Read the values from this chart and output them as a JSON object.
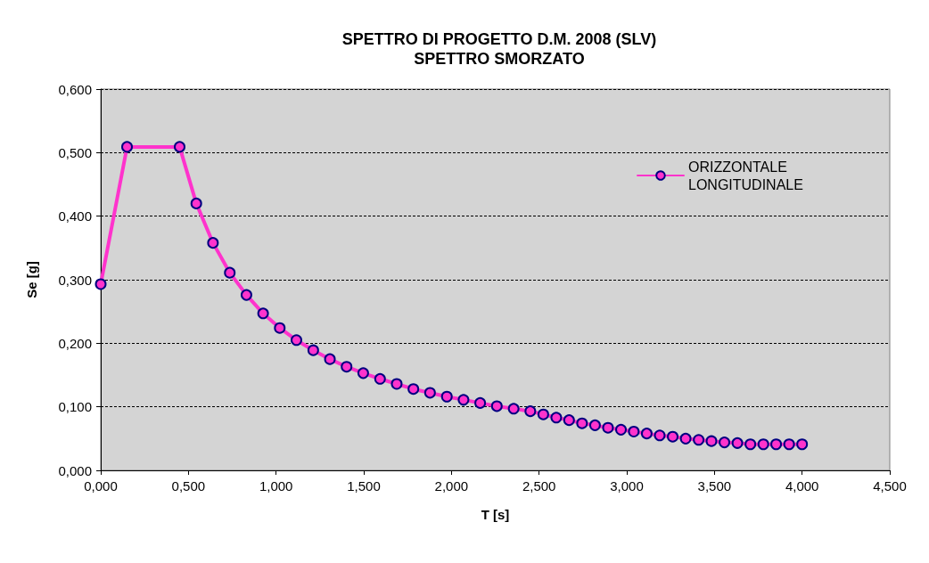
{
  "chart_data": {
    "type": "line",
    "title": "SPETTRO DI PROGETTO D.M. 2008 (SLV)",
    "subtitle": "SPETTRO SMORZATO",
    "xlabel": "T [s]",
    "ylabel": "Se [g]",
    "x": [
      0,
      0.15,
      0.45,
      0.545,
      0.64,
      0.736,
      0.831,
      0.926,
      1.021,
      1.116,
      1.212,
      1.307,
      1.402,
      1.497,
      1.593,
      1.688,
      1.783,
      1.878,
      1.974,
      2.069,
      2.164,
      2.259,
      2.355,
      2.45,
      2.524,
      2.598,
      2.671,
      2.745,
      2.819,
      2.893,
      2.967,
      3.04,
      3.114,
      3.188,
      3.262,
      3.336,
      3.41,
      3.483,
      3.557,
      3.631,
      3.705,
      3.779,
      3.852,
      3.926,
      4.0
    ],
    "series": [
      {
        "name": "ORIZZONTALE LONGITUDINALE",
        "color": "#ff33cc",
        "values": [
          0.293,
          0.509,
          0.509,
          0.42,
          0.358,
          0.311,
          0.276,
          0.247,
          0.224,
          0.205,
          0.189,
          0.175,
          0.163,
          0.153,
          0.144,
          0.136,
          0.128,
          0.122,
          0.116,
          0.111,
          0.106,
          0.101,
          0.097,
          0.093,
          0.088,
          0.083,
          0.079,
          0.074,
          0.071,
          0.067,
          0.064,
          0.061,
          0.058,
          0.055,
          0.053,
          0.05,
          0.048,
          0.046,
          0.044,
          0.043,
          0.041,
          0.041,
          0.041,
          0.041,
          0.041
        ]
      }
    ],
    "xlim": [
      0,
      4.5
    ],
    "xticks": [
      {
        "value": 0,
        "label": "0,000"
      },
      {
        "value": 0.5,
        "label": "0,500"
      },
      {
        "value": 1,
        "label": "1,000"
      },
      {
        "value": 1.5,
        "label": "1,500"
      },
      {
        "value": 2,
        "label": "2,000"
      },
      {
        "value": 2.5,
        "label": "2,500"
      },
      {
        "value": 3,
        "label": "3,000"
      },
      {
        "value": 3.5,
        "label": "3,500"
      },
      {
        "value": 4,
        "label": "4,000"
      },
      {
        "value": 4.5,
        "label": "4,500"
      }
    ],
    "ylim": [
      0,
      0.6
    ],
    "yticks": [
      {
        "value": 0,
        "label": "0,000"
      },
      {
        "value": 0.1,
        "label": "0,100"
      },
      {
        "value": 0.2,
        "label": "0,200"
      },
      {
        "value": 0.3,
        "label": "0,300"
      },
      {
        "value": 0.4,
        "label": "0,400"
      },
      {
        "value": 0.5,
        "label": "0,500"
      },
      {
        "value": 0.6,
        "label": "0,600"
      }
    ],
    "grid": "y",
    "legend": "top right",
    "marker": "circle",
    "line_style": "solid"
  }
}
